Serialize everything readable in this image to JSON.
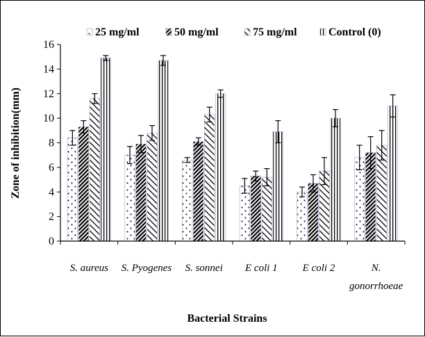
{
  "chart_data": {
    "type": "bar",
    "title": "",
    "xlabel": "Bacterial Strains",
    "ylabel": "Zone of inhibition(mm)",
    "ylim": [
      0,
      16
    ],
    "yticks": [
      "0",
      "2",
      "4",
      "6",
      "8",
      "10",
      "12",
      "14",
      "16"
    ],
    "categories": [
      [
        "S. aureus"
      ],
      [
        "S. Pyogenes"
      ],
      [
        "S. sonnei"
      ],
      [
        "E coli 1"
      ],
      [
        "E coli 2"
      ],
      [
        "N.",
        "gonorrhoeae"
      ]
    ],
    "legend_position": "top",
    "series": [
      {
        "name": "25 mg/ml",
        "pattern": "dots",
        "color": "#000000",
        "values": [
          8.4,
          7.0,
          6.6,
          4.5,
          4.0,
          6.8
        ],
        "errors": [
          0.6,
          0.7,
          0.2,
          0.6,
          0.4,
          1.0
        ]
      },
      {
        "name": "50 mg/ml",
        "pattern": "dense-diagonal",
        "color": "#000000",
        "values": [
          9.3,
          7.9,
          8.1,
          5.3,
          4.7,
          7.2
        ],
        "errors": [
          0.5,
          0.7,
          0.3,
          0.4,
          0.7,
          1.3
        ]
      },
      {
        "name": "75 mg/ml",
        "pattern": "wide-diagonal",
        "color": "#000000",
        "values": [
          11.6,
          8.8,
          10.3,
          5.2,
          5.7,
          7.8
        ],
        "errors": [
          0.4,
          0.6,
          0.6,
          0.7,
          1.1,
          1.2
        ]
      },
      {
        "name": "Control (0)",
        "pattern": "vertical-lines",
        "color": "#000000",
        "values": [
          14.9,
          14.7,
          12.0,
          8.9,
          10.0,
          11.0
        ],
        "errors": [
          0.2,
          0.4,
          0.3,
          0.9,
          0.7,
          0.9
        ]
      }
    ]
  }
}
